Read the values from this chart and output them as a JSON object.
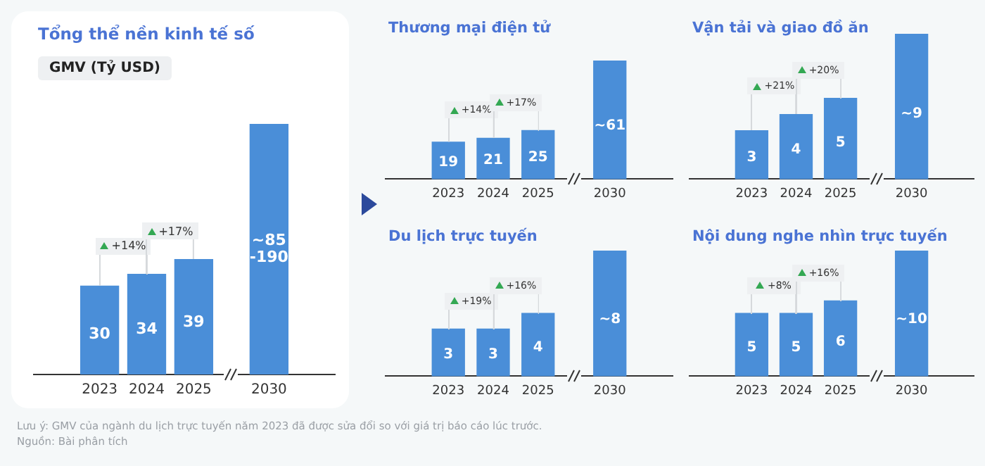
{
  "chart_data": [
    {
      "type": "bar",
      "title": "Tổng thể nền kinh tế số",
      "subtitle": "GMV (Tỷ USD)",
      "categories": [
        "2023",
        "2024",
        "2025",
        "2030"
      ],
      "values": [
        30,
        34,
        39,
        85
      ],
      "value_labels": [
        "30",
        "34",
        "39",
        "~85-190"
      ],
      "color": "#4a8ed8",
      "legend": false,
      "annotations": [
        "+14%",
        "+17%",
        "Lưu ý: GMV của ngành du lịch trực tuyến năm 2023 đã được sửa đổi so với giá trị báo cáo lúc trước.",
        "Nguồn: Bài phân tích"
      ]
    },
    {
      "type": "bar",
      "title": "Thương mại điện tử",
      "categories": [
        "2023",
        "2024",
        "2025",
        "2030"
      ],
      "values": [
        19,
        21,
        25,
        61
      ],
      "value_labels": [
        "19",
        "21",
        "25",
        "~61"
      ],
      "color": "#4a8ed8",
      "legend": false,
      "annotations": [
        "+14%",
        "+17%"
      ]
    },
    {
      "type": "bar",
      "title": "Vận tải và giao đồ ăn",
      "categories": [
        "2023",
        "2024",
        "2025",
        "2030"
      ],
      "values": [
        3,
        4,
        5,
        9
      ],
      "value_labels": [
        "3",
        "4",
        "5",
        "~9"
      ],
      "color": "#4a8ed8",
      "legend": false,
      "annotations": [
        "+21%",
        "+20%"
      ]
    },
    {
      "type": "bar",
      "title": "Du lịch trực tuyến",
      "categories": [
        "2023",
        "2024",
        "2025",
        "2030"
      ],
      "values": [
        3,
        3,
        4,
        8
      ],
      "value_labels": [
        "3",
        "3",
        "4",
        "~8"
      ],
      "color": "#4a8ed8",
      "legend": false,
      "annotations": [
        "+19%",
        "+16%"
      ]
    },
    {
      "type": "bar",
      "title": "Nội dung nghe nhìn trực tuyến",
      "categories": [
        "2023",
        "2024",
        "2025",
        "2030"
      ],
      "values": [
        5,
        5,
        6,
        10
      ],
      "value_labels": [
        "5",
        "5",
        "6",
        "~10"
      ],
      "color": "#4a8ed8",
      "legend": false,
      "annotations": [
        "+8%",
        "+16%"
      ]
    }
  ]
}
